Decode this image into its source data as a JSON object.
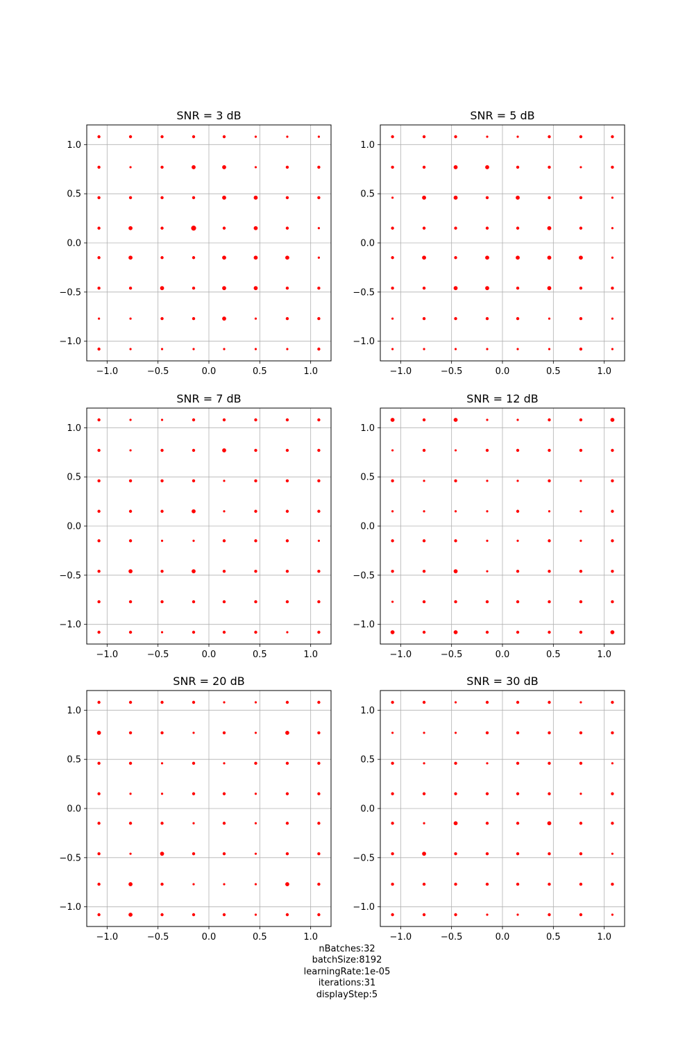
{
  "chart_data": [
    {
      "type": "scatter",
      "title": "SNR = 3 dB",
      "xlim": [
        -1.2,
        1.2
      ],
      "ylim": [
        -1.2,
        1.2
      ],
      "xticks": [
        -1.0,
        -0.5,
        0.0,
        0.5,
        1.0
      ],
      "yticks": [
        -1.0,
        -0.5,
        0.0,
        0.5,
        1.0
      ],
      "xtick_labels": [
        "−1.0",
        "−0.5",
        "0.0",
        "0.5",
        "1.0"
      ],
      "ytick_labels": [
        "−1.0",
        "−0.5",
        "0.0",
        "0.5",
        "1.0"
      ],
      "grid": true,
      "marker_color": "#ff0000",
      "constellation_levels": [
        -1.08,
        -0.77,
        -0.46,
        -0.15,
        0.15,
        0.46,
        0.77,
        1.08
      ],
      "point_weights": [
        [
          2,
          2,
          2,
          2,
          2,
          1,
          1,
          1
        ],
        [
          2,
          1,
          2,
          3,
          3,
          1,
          2,
          2
        ],
        [
          2,
          2,
          2,
          2,
          3,
          3,
          2,
          2
        ],
        [
          2,
          3,
          2,
          4,
          2,
          3,
          2,
          1
        ],
        [
          2,
          3,
          2,
          2,
          3,
          3,
          3,
          1
        ],
        [
          2,
          2,
          3,
          2,
          3,
          3,
          2,
          2
        ],
        [
          1,
          1,
          2,
          2,
          3,
          1,
          2,
          2
        ],
        [
          2,
          1,
          1,
          1,
          1,
          1,
          1,
          2
        ]
      ]
    },
    {
      "type": "scatter",
      "title": "SNR = 5 dB",
      "xlim": [
        -1.2,
        1.2
      ],
      "ylim": [
        -1.2,
        1.2
      ],
      "xticks": [
        -1.0,
        -0.5,
        0.0,
        0.5,
        1.0
      ],
      "yticks": [
        -1.0,
        -0.5,
        0.0,
        0.5,
        1.0
      ],
      "xtick_labels": [
        "−1.0",
        "−0.5",
        "0.0",
        "0.5",
        "1.0"
      ],
      "ytick_labels": [
        "−1.0",
        "−0.5",
        "0.0",
        "0.5",
        "1.0"
      ],
      "grid": true,
      "marker_color": "#ff0000",
      "constellation_levels": [
        -1.08,
        -0.77,
        -0.46,
        -0.15,
        0.15,
        0.46,
        0.77,
        1.08
      ],
      "point_weights": [
        [
          2,
          2,
          2,
          1,
          1,
          2,
          2,
          2
        ],
        [
          2,
          2,
          3,
          3,
          2,
          2,
          1,
          2
        ],
        [
          1,
          3,
          3,
          2,
          3,
          2,
          2,
          1
        ],
        [
          2,
          2,
          2,
          2,
          2,
          3,
          2,
          1
        ],
        [
          2,
          3,
          2,
          3,
          3,
          3,
          3,
          1
        ],
        [
          2,
          2,
          3,
          3,
          2,
          3,
          2,
          2
        ],
        [
          1,
          2,
          2,
          2,
          2,
          1,
          2,
          1
        ],
        [
          1,
          1,
          1,
          1,
          1,
          1,
          2,
          1
        ]
      ]
    },
    {
      "type": "scatter",
      "title": "SNR = 7 dB",
      "xlim": [
        -1.2,
        1.2
      ],
      "ylim": [
        -1.2,
        1.2
      ],
      "xticks": [
        -1.0,
        -0.5,
        0.0,
        0.5,
        1.0
      ],
      "yticks": [
        -1.0,
        -0.5,
        0.0,
        0.5,
        1.0
      ],
      "xtick_labels": [
        "−1.0",
        "−0.5",
        "0.0",
        "0.5",
        "1.0"
      ],
      "ytick_labels": [
        "−1.0",
        "−0.5",
        "0.0",
        "0.5",
        "1.0"
      ],
      "grid": true,
      "marker_color": "#ff0000",
      "constellation_levels": [
        -1.08,
        -0.77,
        -0.46,
        -0.15,
        0.15,
        0.46,
        0.77,
        1.08
      ],
      "point_weights": [
        [
          2,
          1,
          1,
          2,
          2,
          2,
          2,
          2
        ],
        [
          2,
          1,
          2,
          2,
          3,
          2,
          2,
          2
        ],
        [
          2,
          2,
          2,
          2,
          1,
          2,
          2,
          2
        ],
        [
          2,
          2,
          2,
          3,
          1,
          2,
          2,
          2
        ],
        [
          2,
          2,
          1,
          1,
          2,
          2,
          2,
          1
        ],
        [
          2,
          3,
          2,
          3,
          2,
          2,
          2,
          2
        ],
        [
          2,
          2,
          2,
          2,
          2,
          2,
          2,
          2
        ],
        [
          2,
          2,
          1,
          2,
          2,
          2,
          1,
          2
        ]
      ]
    },
    {
      "type": "scatter",
      "title": "SNR = 12 dB",
      "xlim": [
        -1.2,
        1.2
      ],
      "ylim": [
        -1.2,
        1.2
      ],
      "xticks": [
        -1.0,
        -0.5,
        0.0,
        0.5,
        1.0
      ],
      "yticks": [
        -1.0,
        -0.5,
        0.0,
        0.5,
        1.0
      ],
      "xtick_labels": [
        "−1.0",
        "−0.5",
        "0.0",
        "0.5",
        "1.0"
      ],
      "ytick_labels": [
        "−1.0",
        "−0.5",
        "0.0",
        "0.5",
        "1.0"
      ],
      "grid": true,
      "marker_color": "#ff0000",
      "constellation_levels": [
        -1.08,
        -0.77,
        -0.46,
        -0.15,
        0.15,
        0.46,
        0.77,
        1.08
      ],
      "point_weights": [
        [
          3,
          2,
          3,
          1,
          1,
          2,
          2,
          3
        ],
        [
          1,
          2,
          1,
          2,
          2,
          2,
          2,
          2
        ],
        [
          2,
          1,
          2,
          1,
          1,
          2,
          1,
          2
        ],
        [
          1,
          1,
          1,
          1,
          2,
          1,
          1,
          2
        ],
        [
          2,
          2,
          2,
          1,
          1,
          2,
          1,
          2
        ],
        [
          2,
          2,
          3,
          1,
          2,
          2,
          2,
          2
        ],
        [
          1,
          2,
          2,
          2,
          2,
          2,
          2,
          2
        ],
        [
          3,
          2,
          3,
          2,
          2,
          2,
          2,
          3
        ]
      ]
    },
    {
      "type": "scatter",
      "title": "SNR = 20 dB",
      "xlim": [
        -1.2,
        1.2
      ],
      "ylim": [
        -1.2,
        1.2
      ],
      "xticks": [
        -1.0,
        -0.5,
        0.0,
        0.5,
        1.0
      ],
      "yticks": [
        -1.0,
        -0.5,
        0.0,
        0.5,
        1.0
      ],
      "xtick_labels": [
        "−1.0",
        "−0.5",
        "0.0",
        "0.5",
        "1.0"
      ],
      "ytick_labels": [
        "−1.0",
        "−0.5",
        "0.0",
        "0.5",
        "1.0"
      ],
      "grid": true,
      "marker_color": "#ff0000",
      "constellation_levels": [
        -1.08,
        -0.77,
        -0.46,
        -0.15,
        0.15,
        0.46,
        0.77,
        1.08
      ],
      "point_weights": [
        [
          2,
          2,
          2,
          2,
          1,
          1,
          2,
          2
        ],
        [
          3,
          2,
          2,
          1,
          2,
          1,
          3,
          2
        ],
        [
          2,
          2,
          1,
          2,
          1,
          2,
          2,
          2
        ],
        [
          2,
          1,
          1,
          2,
          2,
          1,
          2,
          2
        ],
        [
          2,
          2,
          2,
          1,
          2,
          1,
          2,
          2
        ],
        [
          2,
          1,
          3,
          2,
          2,
          1,
          2,
          2
        ],
        [
          2,
          3,
          2,
          1,
          1,
          1,
          3,
          2
        ],
        [
          2,
          3,
          2,
          2,
          2,
          1,
          2,
          2
        ]
      ]
    },
    {
      "type": "scatter",
      "title": "SNR = 30 dB",
      "xlim": [
        -1.2,
        1.2
      ],
      "ylim": [
        -1.2,
        1.2
      ],
      "xticks": [
        -1.0,
        -0.5,
        0.0,
        0.5,
        1.0
      ],
      "yticks": [
        -1.0,
        -0.5,
        0.0,
        0.5,
        1.0
      ],
      "xtick_labels": [
        "−1.0",
        "−0.5",
        "0.0",
        "0.5",
        "1.0"
      ],
      "ytick_labels": [
        "−1.0",
        "−0.5",
        "0.0",
        "0.5",
        "1.0"
      ],
      "grid": true,
      "marker_color": "#ff0000",
      "constellation_levels": [
        -1.08,
        -0.77,
        -0.46,
        -0.15,
        0.15,
        0.46,
        0.77,
        1.08
      ],
      "point_weights": [
        [
          2,
          2,
          1,
          2,
          2,
          2,
          1,
          2
        ],
        [
          1,
          1,
          1,
          2,
          2,
          2,
          2,
          2
        ],
        [
          2,
          1,
          2,
          1,
          2,
          2,
          2,
          1
        ],
        [
          2,
          2,
          2,
          2,
          2,
          2,
          1,
          2
        ],
        [
          2,
          1,
          3,
          2,
          2,
          3,
          2,
          2
        ],
        [
          2,
          3,
          2,
          2,
          2,
          2,
          2,
          1
        ],
        [
          2,
          2,
          2,
          2,
          2,
          2,
          2,
          2
        ],
        [
          2,
          2,
          2,
          1,
          1,
          2,
          2,
          1
        ]
      ]
    }
  ],
  "footer": {
    "lines": [
      "nBatches:32",
      "batchSize:8192",
      "learningRate:1e-05",
      "iterations:31",
      "displayStep:5"
    ]
  }
}
